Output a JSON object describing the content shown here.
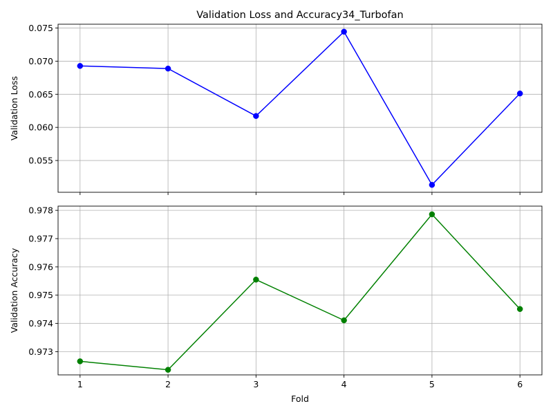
{
  "figure": {
    "title": "Validation Loss and Accuracy34_Turbofan"
  },
  "chart_data": [
    {
      "type": "line",
      "title": "Validation Loss and Accuracy34_Turbofan",
      "xlabel": "",
      "ylabel": "Validation Loss",
      "x": [
        1,
        2,
        3,
        4,
        5,
        6
      ],
      "series": [
        {
          "values": [
            0.06928,
            0.06888,
            0.06172,
            0.07445,
            0.05132,
            0.06512
          ],
          "color": "#0000ff",
          "marker": "circle"
        }
      ],
      "xlim": [
        0.75,
        6.25
      ],
      "ylim": [
        0.0502,
        0.07558
      ],
      "xticks": [
        1,
        2,
        3,
        4,
        5,
        6
      ],
      "xtick_labels_visible": false,
      "yticks": [
        0.055,
        0.06,
        0.065,
        0.07,
        0.075
      ],
      "ytick_labels": [
        "0.055",
        "0.060",
        "0.065",
        "0.070",
        "0.075"
      ],
      "grid": true,
      "legend": "none"
    },
    {
      "type": "line",
      "title": "",
      "xlabel": "Fold",
      "ylabel": "Validation Accuracy",
      "x": [
        1,
        2,
        3,
        4,
        5,
        6
      ],
      "series": [
        {
          "values": [
            0.97266,
            0.97236,
            0.97555,
            0.97411,
            0.97786,
            0.97451
          ],
          "color": "#008000",
          "marker": "circle"
        }
      ],
      "xlim": [
        0.75,
        6.25
      ],
      "ylim": [
        0.97218,
        0.97815
      ],
      "xticks": [
        1,
        2,
        3,
        4,
        5,
        6
      ],
      "xtick_labels": [
        "1",
        "2",
        "3",
        "4",
        "5",
        "6"
      ],
      "yticks": [
        0.973,
        0.974,
        0.975,
        0.976,
        0.977,
        0.978
      ],
      "ytick_labels": [
        "0.973",
        "0.974",
        "0.975",
        "0.976",
        "0.977",
        "0.978"
      ],
      "grid": true,
      "legend": "none"
    }
  ]
}
